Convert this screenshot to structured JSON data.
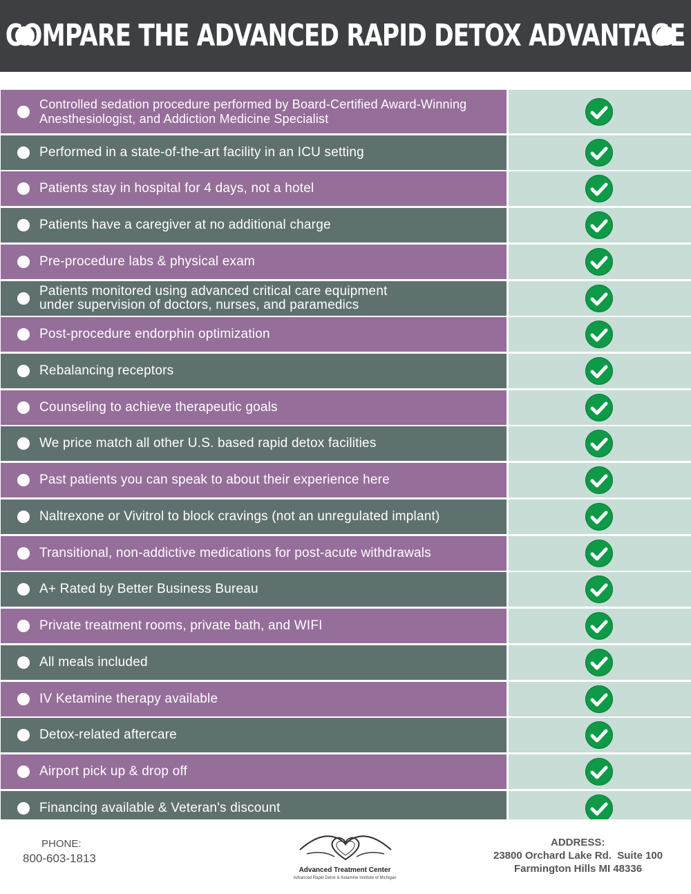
{
  "header": {
    "title": "COMPARE THE ADVANCED RAPID DETOX ADVANTAGE"
  },
  "features": [
    {
      "text": "Controlled sedation procedure performed by Board-Certified Award-Winning\nAnesthesiologist, and Addiction Medicine Specialist",
      "checked": true
    },
    {
      "text": "Performed in a state-of-the-art facility in an ICU setting",
      "checked": true
    },
    {
      "text": "Patients stay in hospital for 4 days, not a hotel",
      "checked": true
    },
    {
      "text": "Patients have a caregiver at no additional charge",
      "checked": true
    },
    {
      "text": "Pre-procedure labs & physical exam",
      "checked": true
    },
    {
      "text": "Patients monitored using advanced critical care equipment\nunder supervision of doctors, nurses, and paramedics",
      "checked": true
    },
    {
      "text": "Post-procedure endorphin optimization",
      "checked": true
    },
    {
      "text": "Rebalancing receptors",
      "checked": true
    },
    {
      "text": "Counseling to achieve therapeutic goals",
      "checked": true
    },
    {
      "text": "We price match all other U.S. based rapid detox facilities",
      "checked": true
    },
    {
      "text": "Past patients you can speak to about their experience here",
      "checked": true
    },
    {
      "text": "Naltrexone or Vivitrol to block cravings (not an unregulated implant)",
      "checked": true
    },
    {
      "text": "Transitional, non-addictive medications for post-acute withdrawals",
      "checked": true
    },
    {
      "text": "A+ Rated by Better Business Bureau",
      "checked": true
    },
    {
      "text": "Private treatment rooms, private bath, and WIFI",
      "checked": true
    },
    {
      "text": "All meals included",
      "checked": true
    },
    {
      "text": "IV Ketamine therapy available",
      "checked": true
    },
    {
      "text": "Detox-related aftercare",
      "checked": true
    },
    {
      "text": "Airport pick up & drop off",
      "checked": true
    },
    {
      "text": "Financing available & Veteran's discount",
      "checked": true
    }
  ],
  "footer": {
    "phone_label": "PHONE:",
    "phone_number": "800-603-1813",
    "logo_name": "Advanced Treatment Center",
    "logo_subtitle": "Advanced Rapid Detox & Ketamine Institute of Michigan",
    "address_label": "ADDRESS:",
    "address_line1": "23800 Orchard Lake Rd.  Suite 100",
    "address_line2": "Farmington Hills MI 48336"
  },
  "colors": {
    "header_bg": "#3d3f42",
    "row_purple": "#966e9a",
    "row_slate": "#5f716f",
    "check_column": "#c7ddd6",
    "check_green": "#0e9a47"
  },
  "icons": {
    "bullet": "bullet-dot-icon",
    "check": "green-checkmark-icon",
    "logo": "heart-hands-logo-icon"
  }
}
